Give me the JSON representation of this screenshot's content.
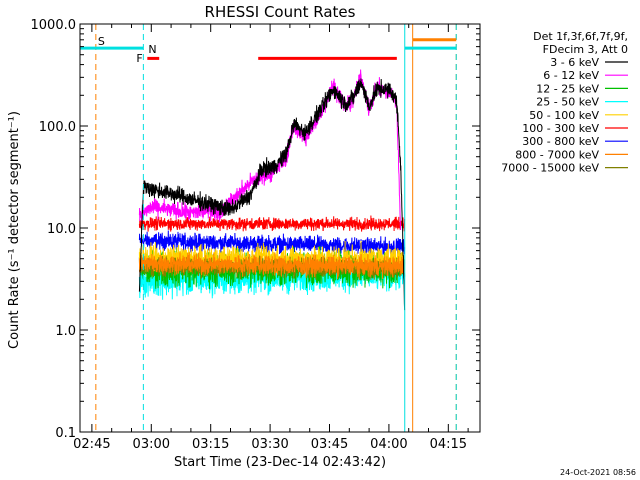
{
  "chart_data": {
    "type": "line",
    "title": "RHESSI Count Rates",
    "xlabel": "Start Time (23-Dec-14 02:43:42)",
    "ylabel": "Count Rate (s⁻¹ detector segment⁻¹)",
    "y_scale": "log",
    "ylim": [
      0.1,
      1000.0
    ],
    "xlim": [
      "02:42",
      "04:23"
    ],
    "x_ticks": [
      "02:45",
      "03:00",
      "03:15",
      "03:30",
      "03:45",
      "04:00",
      "04:15"
    ],
    "y_ticks": [
      "0.1",
      "1.0",
      "10.0",
      "100.0",
      "1000.0"
    ],
    "legend_header": [
      "Det 1f,3f,6f,7f,9f,",
      "FDecim 3, Att 0"
    ],
    "legend_position": "right",
    "timestamp": "24-Oct-2021 08:56",
    "series": [
      {
        "name": "3 - 6 keV",
        "color": "#000000",
        "x": [
          "02:57",
          "02:58",
          "02:59",
          "03:00",
          "03:05",
          "03:10",
          "03:15",
          "03:20",
          "03:25",
          "03:28",
          "03:31",
          "03:34",
          "03:36",
          "03:39",
          "03:41",
          "03:43",
          "03:46",
          "03:49",
          "03:51",
          "03:53",
          "03:55",
          "03:57",
          "03:59",
          "04:01",
          "04:02",
          "04:03",
          "04:04"
        ],
        "y": [
          2.5,
          25,
          25,
          24,
          22,
          19,
          17,
          15,
          21,
          38,
          40,
          52,
          105,
          85,
          115,
          150,
          230,
          165,
          190,
          270,
          155,
          230,
          230,
          210,
          170,
          40,
          1.4
        ]
      },
      {
        "name": "6 - 12 keV",
        "color": "#ff00ff",
        "x": [
          "02:57",
          "02:59",
          "03:00",
          "03:05",
          "03:10",
          "03:15",
          "03:17",
          "03:20",
          "03:25",
          "03:28",
          "03:31",
          "03:34",
          "03:36",
          "03:39",
          "03:41",
          "03:43",
          "03:46",
          "03:49",
          "03:51",
          "03:53",
          "03:55",
          "03:57",
          "03:59",
          "04:01",
          "04:02",
          "04:03"
        ],
        "y": [
          13,
          15,
          16,
          15,
          14,
          15,
          14,
          18,
          28,
          32,
          36,
          48,
          100,
          75,
          100,
          140,
          250,
          155,
          180,
          300,
          145,
          240,
          220,
          205,
          160,
          8
        ]
      },
      {
        "name": "12 - 25 keV",
        "color": "#00c000",
        "x": [
          "02:57",
          "04:04"
        ],
        "y": [
          4.0,
          4.0
        ]
      },
      {
        "name": "25 - 50 keV",
        "color": "#00ffff",
        "x": [
          "02:57",
          "04:04"
        ],
        "y": [
          3.0,
          3.5
        ]
      },
      {
        "name": "50 - 100 keV",
        "color": "#ffd000",
        "x": [
          "02:57",
          "04:04"
        ],
        "y": [
          5.0,
          5.0
        ]
      },
      {
        "name": "100 - 300 keV",
        "color": "#ff0000",
        "x": [
          "02:57",
          "04:04"
        ],
        "y": [
          11,
          11
        ]
      },
      {
        "name": "300 - 800 keV",
        "color": "#0000ff",
        "x": [
          "02:57",
          "04:04"
        ],
        "y": [
          7.5,
          6.5
        ]
      },
      {
        "name": "800 - 7000 keV",
        "color": "#ff8000",
        "x": [
          "02:57",
          "04:04"
        ],
        "y": [
          4.5,
          4.2
        ]
      },
      {
        "name": "7000 - 15000 keV",
        "color": "#808000",
        "x": [
          "02:57",
          "04:04"
        ],
        "y": [
          4.2,
          4.0
        ]
      }
    ],
    "annotations": [
      {
        "label": "S",
        "color": "#ff8000",
        "x": "02:46"
      },
      {
        "label": "N",
        "color": "#00e0e0",
        "x": "02:58"
      },
      {
        "label": "F",
        "color": "#ff0000",
        "x": "02:59"
      }
    ],
    "flag_bars": [
      {
        "name": "saa",
        "color": "#00e0e0",
        "y": 580,
        "x_start": "02:42",
        "x_end": "02:58"
      },
      {
        "name": "saa-2",
        "color": "#00e0e0",
        "y": 580,
        "x_start": "04:04",
        "x_end": "04:17"
      },
      {
        "name": "flare-1",
        "color": "#ff0000",
        "y": 460,
        "x_start": "02:59",
        "x_end": "03:02"
      },
      {
        "name": "flare-2",
        "color": "#ff0000",
        "y": 460,
        "x_start": "03:27",
        "x_end": "04:02"
      },
      {
        "name": "night",
        "color": "#ff8000",
        "y": 700,
        "x_start": "04:06",
        "x_end": "04:17"
      }
    ],
    "vertical_lines": [
      {
        "color": "#00e0e0",
        "style": "solid",
        "x": "02:42"
      },
      {
        "color": "#ff8000",
        "style": "dashed",
        "x": "02:46"
      },
      {
        "color": "#00e0e0",
        "style": "dashed",
        "x": "02:58"
      },
      {
        "color": "#00e0e0",
        "style": "solid",
        "x": "04:04"
      },
      {
        "color": "#ff8000",
        "style": "solid",
        "x": "04:06"
      },
      {
        "color": "#ff8000",
        "style": "dashed",
        "x": "04:17"
      },
      {
        "color": "#00e0e0",
        "style": "dashed",
        "x": "04:17"
      }
    ]
  }
}
